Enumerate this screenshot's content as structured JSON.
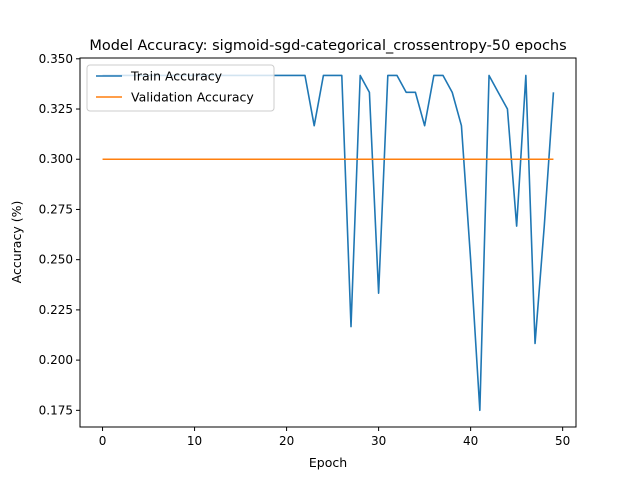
{
  "chart_data": {
    "type": "line",
    "title": "Model Accuracy: sigmoid-sgd-categorical_crossentropy-50 epochs",
    "xlabel": "Epoch",
    "ylabel": "Accuracy (%)",
    "xlim": [
      -2.45,
      51.45
    ],
    "ylim": [
      0.1667,
      0.3504
    ],
    "xticks": [
      0,
      10,
      20,
      30,
      40,
      50
    ],
    "yticks": [
      0.175,
      0.2,
      0.225,
      0.25,
      0.275,
      0.3,
      0.325,
      0.35
    ],
    "grid": false,
    "legend_position": "top-left",
    "series": [
      {
        "name": "Train Accuracy",
        "color": "#1f77b4",
        "x": [
          0,
          1,
          2,
          3,
          4,
          5,
          6,
          7,
          8,
          9,
          10,
          11,
          12,
          13,
          14,
          15,
          16,
          17,
          18,
          19,
          20,
          21,
          22,
          23,
          24,
          25,
          26,
          27,
          28,
          29,
          30,
          31,
          32,
          33,
          34,
          35,
          36,
          37,
          38,
          39,
          40,
          41,
          42,
          43,
          44,
          45,
          46,
          47,
          48,
          49
        ],
        "values": [
          0.3417,
          0.3417,
          0.3417,
          0.3417,
          0.3417,
          0.3417,
          0.3417,
          0.3417,
          0.3417,
          0.3417,
          0.3417,
          0.3417,
          0.3417,
          0.3417,
          0.3417,
          0.3417,
          0.3417,
          0.3417,
          0.3417,
          0.3417,
          0.3417,
          0.3417,
          0.3417,
          0.3167,
          0.3417,
          0.3417,
          0.3417,
          0.2167,
          0.3417,
          0.3333,
          0.2333,
          0.3417,
          0.3417,
          0.3333,
          0.3333,
          0.3167,
          0.3417,
          0.3417,
          0.3333,
          0.3167,
          0.25,
          0.175,
          0.3417,
          0.3333,
          0.325,
          0.2667,
          0.3417,
          0.2083,
          0.2667,
          0.3333
        ]
      },
      {
        "name": "Validation Accuracy",
        "color": "#ff7f0e",
        "x": [
          0,
          1,
          2,
          3,
          4,
          5,
          6,
          7,
          8,
          9,
          10,
          11,
          12,
          13,
          14,
          15,
          16,
          17,
          18,
          19,
          20,
          21,
          22,
          23,
          24,
          25,
          26,
          27,
          28,
          29,
          30,
          31,
          32,
          33,
          34,
          35,
          36,
          37,
          38,
          39,
          40,
          41,
          42,
          43,
          44,
          45,
          46,
          47,
          48,
          49
        ],
        "values": [
          0.3,
          0.3,
          0.3,
          0.3,
          0.3,
          0.3,
          0.3,
          0.3,
          0.3,
          0.3,
          0.3,
          0.3,
          0.3,
          0.3,
          0.3,
          0.3,
          0.3,
          0.3,
          0.3,
          0.3,
          0.3,
          0.3,
          0.3,
          0.3,
          0.3,
          0.3,
          0.3,
          0.3,
          0.3,
          0.3,
          0.3,
          0.3,
          0.3,
          0.3,
          0.3,
          0.3,
          0.3,
          0.3,
          0.3,
          0.3,
          0.3,
          0.3,
          0.3,
          0.3,
          0.3,
          0.3,
          0.3,
          0.3,
          0.3,
          0.3
        ]
      }
    ]
  }
}
